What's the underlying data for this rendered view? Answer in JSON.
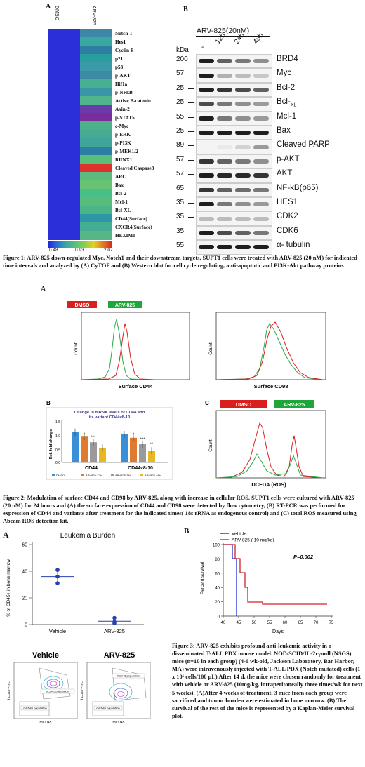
{
  "fig1": {
    "panel_a": "A",
    "panel_b": "B",
    "col_dmso": "DMSO",
    "col_arv": "ARV-825",
    "heatmap_rows": [
      "Notch-1",
      "Hes1",
      "Cyclin B",
      "p21",
      "p53",
      "p-AKT",
      "Hif1a",
      "p-NFkB",
      "Active B-catenin",
      "Axin-2",
      "p-STAT5",
      "c-Myc",
      "p-ERK",
      "p-PI3K",
      "p-MEK1/2",
      "RUNX1",
      "Cleaved Caspase3",
      "ARC",
      "Bax",
      "Bcl-2",
      "Mcl-1",
      "Bcl-XL",
      "CD44(Surface)",
      "CXCR4(Surface)",
      "HEXIM1"
    ],
    "heatmap_arv_colors": [
      "#3c86a8",
      "#3aa8a0",
      "#2c7fa0",
      "#2a9e9e",
      "#3a9aa8",
      "#3c8aa4",
      "#48b090",
      "#3a96a6",
      "#52b48c",
      "#6a3aa8",
      "#7a2e9c",
      "#4cb28a",
      "#48aa94",
      "#40a49a",
      "#2c7ea2",
      "#58c07a",
      "#e0322c",
      "#5cbc7e",
      "#68c274",
      "#46c086",
      "#58bc7c",
      "#4ab686",
      "#2e96a4",
      "#44ae94",
      "#56b688"
    ],
    "heatmap_dmso_color": "#2b2fd8",
    "scale_min": "0.48",
    "scale_mid": "0.93",
    "scale_max": "2.07",
    "wb_header": "ARV-825(20nM)",
    "wb_kda": "kDa",
    "wb_lanes": [
      "-",
      "12h",
      "24h",
      "48h"
    ],
    "wb_rows": [
      {
        "kda": "200",
        "name": "BRD4"
      },
      {
        "kda": "57",
        "name": "Myc"
      },
      {
        "kda": "25",
        "name": "Bcl-2"
      },
      {
        "kda": "25",
        "name": "Bcl-",
        "sub": "XL"
      },
      {
        "kda": "55",
        "name": "Mcl-1"
      },
      {
        "kda": "25",
        "name": "Bax"
      },
      {
        "kda": "89",
        "name": "Cleaved PARP"
      },
      {
        "kda": "57",
        "name": "p-AKT"
      },
      {
        "kda": "57",
        "name": "AKT"
      },
      {
        "kda": "65",
        "name": "NF-kB(p65)"
      },
      {
        "kda": "35",
        "name": "HES1"
      },
      {
        "kda": "35",
        "name": "CDK2"
      },
      {
        "kda": "35",
        "name": "CDK6"
      },
      {
        "kda": "55",
        "name": "α- tubulin"
      }
    ],
    "caption": "Figure 1: ARV-825 down-regulated Myc, Notch1 and their downstream targets. SUPT1 cells were treated with ARV-825 (20 nM) for indicated time intervals and analyzed by (A) CyTOF and (B) Western blot for cell cycle regulating, anti-apoptotic and PI3K-Akt pathway proteins"
  },
  "fig2": {
    "panel_a": "A",
    "panel_b": "B",
    "panel_c": "C",
    "legend_dmso": "DMSO",
    "legend_arv": "ARV-825",
    "count_label": "Count",
    "xlabel_cd44": "Surface CD44",
    "xlabel_cd98": "Surface CD98",
    "xlabel_ros": "DCFDA (ROS)",
    "bar_title": "Change in mRNA levels of CD44 and its variant CD44v8-10",
    "bar_ylabel": "Rel. fold change",
    "bar_yticks": [
      "1.5",
      "1.0",
      "0.5",
      "0.0"
    ],
    "bar_groups": [
      "CD44",
      "CD44v8-10"
    ],
    "bar_legend": [
      "DMSO",
      "ARV825-12h",
      "ARV825-24h",
      "ARV825-48h"
    ],
    "bar_colors": [
      "#3a8fd8",
      "#e07a2e",
      "#9a9a9a",
      "#e8b820"
    ],
    "bar_sig": [
      "*",
      "***",
      "*",
      "***",
      "**"
    ],
    "caption": "Figure 2: Modulation of surface CD44 and CD98 by ARV-825, along with increase in cellular ROS. SUPT1 cells were cultured with ARV-825 (20 nM) for 24 hours and (A) the surface expression of CD44 and CD98 were detected by flow cytometry, (B) RT-PCR was performed for expression of CD44 and variants after treatment for the indicated times( 18s rRNA as endogenous control) and (C) total ROS measured using Abcam ROS detection kit."
  },
  "fig3": {
    "panel_a": "A",
    "panel_b": "B",
    "scatter_title": "Leukemia Burden",
    "scatter_ylabel": "% of CD45+ in bone marrow",
    "scatter_yticks": [
      "60",
      "40",
      "20",
      "0"
    ],
    "scatter_groups": [
      "Vehicle",
      "ARV-825"
    ],
    "flow_vehicle": "Vehicle",
    "flow_arv": "ARV-825",
    "flow_ylabel": "hCD45-FITC",
    "flow_xlabel": "mCD45",
    "flow_hpop": "hCD45 population",
    "flow_mpop": "mCD45 population",
    "km_legend": [
      "Vehicle",
      "ARV-825 ( 10 mg/kg)"
    ],
    "km_colors": [
      "#1a2fd0",
      "#d0202a"
    ],
    "km_pvalue": "P=0.002",
    "km_ylabel": "Percent survival",
    "km_xlabel": "Days",
    "km_yticks": [
      "100",
      "80",
      "60",
      "40",
      "20",
      "0"
    ],
    "km_xticks": [
      "40",
      "45",
      "50",
      "55",
      "60",
      "65",
      "70",
      "75"
    ],
    "caption": "Figure 3: ARV-825 exhibits profound anti-leukemic activity in a disseminated T-ALL PDX mouse model. NOD/SCID/IL-2rγnull (NSGS) mice (n=10 in each group) (4-6 wk-old, Jackson Laboratory, Bar Harbor, MA) were intravenously injected with T-ALL PDX (Notch mutated) cells (1 x 10⁶ cells/100 μL) After 14 d, the mice were chosen randomly for treatment with vehicle or ARV-825 (10mg/kg, intraperitoneally three times/wk for next 5 weeks). (A)After 4 weeks of treatment, 3 mice from each group were sacrificed and tumor burden were estimated in bone marrow. (B) The survival of the rest of the mice is represented by a Kaplan-Meier survival plot."
  }
}
